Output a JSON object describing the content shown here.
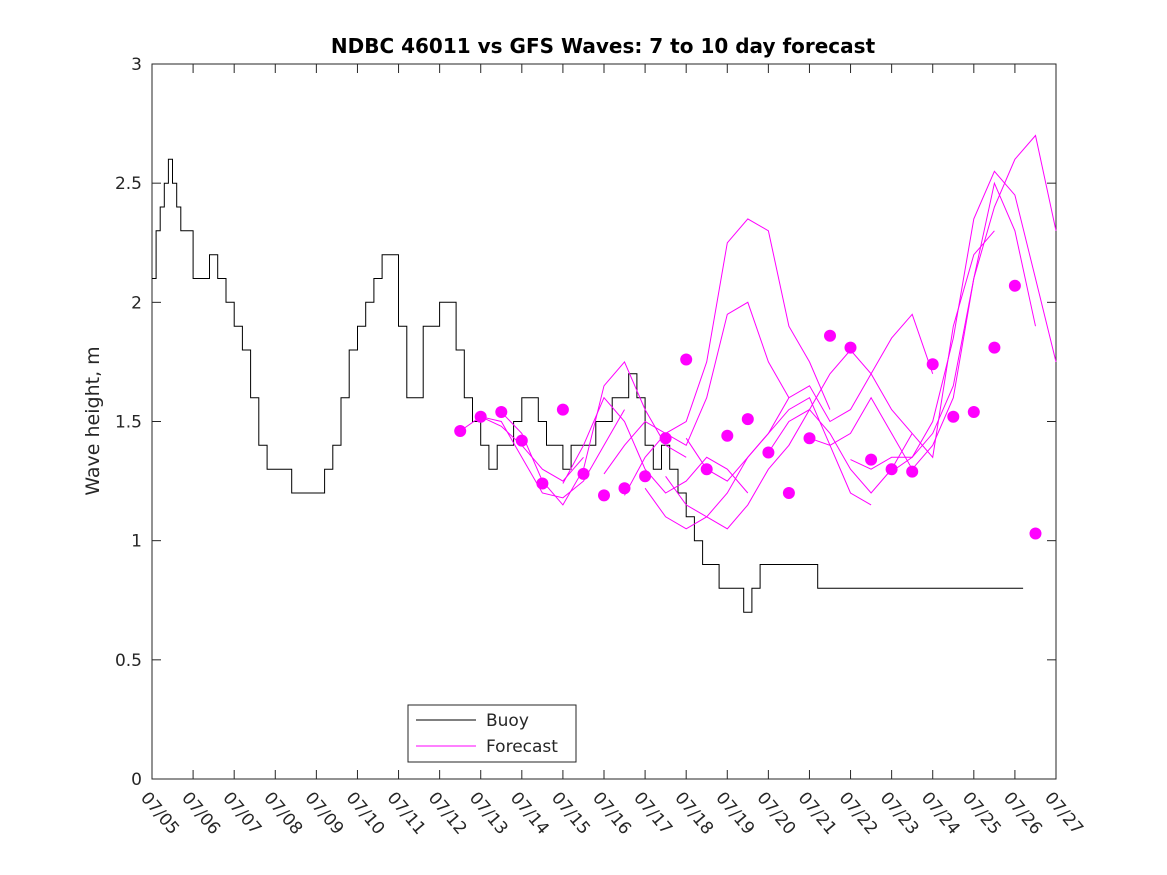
{
  "chart_data": {
    "type": "line",
    "title": "NDBC 46011 vs GFS Waves: 7 to 10 day forecast",
    "xlabel": "",
    "ylabel": "Wave height, m",
    "xlim": [
      0,
      22
    ],
    "ylim": [
      0,
      3
    ],
    "x_tick_labels": [
      "07/05",
      "07/06",
      "07/07",
      "07/08",
      "07/09",
      "07/10",
      "07/11",
      "07/12",
      "07/13",
      "07/14",
      "07/15",
      "07/16",
      "07/17",
      "07/18",
      "07/19",
      "07/20",
      "07/21",
      "07/22",
      "07/23",
      "07/24",
      "07/25",
      "07/26",
      "07/27"
    ],
    "y_ticks": [
      0,
      0.5,
      1,
      1.5,
      2,
      2.5,
      3
    ],
    "y_tick_labels": [
      "0",
      "0.5",
      "1",
      "1.5",
      "2",
      "2.5",
      "3"
    ],
    "grid": false,
    "legend": {
      "placement": "bottom-center",
      "entries": [
        "Buoy",
        "Forecast"
      ]
    },
    "colors": {
      "buoy": "#000000",
      "forecast": "#ff00ff",
      "axes": "#262626"
    },
    "series": [
      {
        "name": "Buoy",
        "x": [
          0,
          0.1,
          0.2,
          0.3,
          0.4,
          0.5,
          0.6,
          0.7,
          0.8,
          1.0,
          1.2,
          1.4,
          1.6,
          1.8,
          2.0,
          2.2,
          2.4,
          2.6,
          2.8,
          3.0,
          3.2,
          3.4,
          3.6,
          3.8,
          4.0,
          4.2,
          4.4,
          4.6,
          4.8,
          5.0,
          5.2,
          5.4,
          5.6,
          5.8,
          6.0,
          6.2,
          6.4,
          6.6,
          6.8,
          7.0,
          7.2,
          7.4,
          7.6,
          7.8,
          8.0,
          8.2,
          8.4,
          8.6,
          8.8,
          9.0,
          9.2,
          9.4,
          9.6,
          9.8,
          10.0,
          10.2,
          10.4,
          10.6,
          10.8,
          11.0,
          11.2,
          11.4,
          11.6,
          11.8,
          12.0,
          12.2,
          12.4,
          12.6,
          12.8,
          13.0,
          13.2,
          13.4,
          13.6,
          13.8,
          14.0,
          14.2,
          14.4,
          14.6,
          14.8,
          15.0,
          15.2,
          15.4,
          15.6,
          15.8,
          16.0,
          16.2,
          16.4,
          16.6,
          16.8,
          17.0,
          17.2,
          17.4,
          17.6,
          17.8,
          18.0,
          18.2,
          18.4,
          18.6,
          18.8,
          19.0,
          19.2,
          19.4,
          19.6,
          19.8,
          20.0,
          20.2,
          20.4,
          20.6,
          20.8,
          21.0,
          21.2
        ],
        "y": [
          2.1,
          2.3,
          2.4,
          2.5,
          2.6,
          2.5,
          2.4,
          2.3,
          2.3,
          2.1,
          2.1,
          2.2,
          2.1,
          2.0,
          1.9,
          1.8,
          1.6,
          1.4,
          1.3,
          1.3,
          1.3,
          1.2,
          1.2,
          1.2,
          1.2,
          1.3,
          1.4,
          1.6,
          1.8,
          1.9,
          2.0,
          2.1,
          2.2,
          2.2,
          1.9,
          1.6,
          1.6,
          1.9,
          1.9,
          2.0,
          2.0,
          1.8,
          1.6,
          1.5,
          1.4,
          1.3,
          1.4,
          1.4,
          1.5,
          1.6,
          1.6,
          1.5,
          1.4,
          1.4,
          1.3,
          1.4,
          1.4,
          1.4,
          1.5,
          1.5,
          1.6,
          1.6,
          1.7,
          1.6,
          1.4,
          1.3,
          1.4,
          1.3,
          1.2,
          1.1,
          1.0,
          0.9,
          0.9,
          0.8,
          0.8,
          0.8,
          0.7,
          0.8,
          0.9,
          0.9,
          0.9,
          0.9,
          0.9,
          0.9,
          0.9,
          0.8,
          0.8,
          0.8,
          0.8,
          0.8,
          0.8,
          0.8,
          0.8,
          0.8,
          0.8,
          0.8,
          0.8,
          0.8,
          0.8,
          0.8,
          0.8,
          0.8,
          0.8,
          0.8,
          0.8,
          0.8,
          0.8,
          0.8,
          0.8,
          0.8,
          0.8
        ]
      },
      {
        "name": "Forecast",
        "x": [
          7.5,
          8.0,
          8.5,
          9.0,
          9.5,
          10.0,
          10.5
        ],
        "y": [
          1.46,
          1.52,
          1.48,
          1.4,
          1.3,
          1.25,
          1.35
        ]
      },
      {
        "name": "",
        "x": [
          8.0,
          8.5,
          9.0,
          9.5,
          10.0,
          10.5,
          11.0,
          11.5
        ],
        "y": [
          1.52,
          1.5,
          1.35,
          1.2,
          1.18,
          1.25,
          1.4,
          1.55
        ]
      },
      {
        "name": "",
        "x": [
          8.5,
          9.0,
          9.5,
          10.0,
          10.5,
          11.0,
          11.5,
          12.0,
          12.5,
          13.0
        ],
        "y": [
          1.54,
          1.45,
          1.25,
          1.15,
          1.3,
          1.65,
          1.75,
          1.55,
          1.4,
          1.35
        ]
      },
      {
        "name": "",
        "x": [
          10.0,
          10.5,
          11.0,
          11.5,
          12.0,
          12.5,
          13.0,
          13.5,
          14.0,
          14.5
        ],
        "y": [
          1.24,
          1.4,
          1.6,
          1.5,
          1.3,
          1.2,
          1.25,
          1.35,
          1.3,
          1.2
        ]
      },
      {
        "name": "",
        "x": [
          11.0,
          11.5,
          12.0,
          12.5,
          13.0,
          13.5,
          14.0,
          14.5,
          15.0,
          15.5
        ],
        "y": [
          1.28,
          1.4,
          1.5,
          1.45,
          1.4,
          1.6,
          1.95,
          2.0,
          1.75,
          1.6
        ]
      },
      {
        "name": "",
        "x": [
          11.5,
          12.0,
          12.5,
          13.0,
          13.5,
          14.0,
          14.5,
          15.0,
          15.5,
          16.0,
          16.5
        ],
        "y": [
          1.19,
          1.35,
          1.45,
          1.5,
          1.75,
          2.25,
          2.35,
          2.3,
          1.9,
          1.75,
          1.55
        ]
      },
      {
        "name": "",
        "x": [
          12.0,
          12.5,
          13.0,
          13.5,
          14.0,
          14.5,
          15.0,
          15.5,
          16.0,
          16.5,
          17.0,
          17.5
        ],
        "y": [
          1.22,
          1.1,
          1.05,
          1.1,
          1.2,
          1.35,
          1.45,
          1.55,
          1.6,
          1.4,
          1.2,
          1.15
        ]
      },
      {
        "name": "",
        "x": [
          12.5,
          13.0,
          13.5,
          14.0,
          14.5,
          15.0,
          15.5,
          16.0,
          16.5,
          17.0,
          17.5,
          18.0,
          18.5
        ],
        "y": [
          1.27,
          1.15,
          1.1,
          1.05,
          1.15,
          1.3,
          1.4,
          1.55,
          1.45,
          1.3,
          1.2,
          1.3,
          1.45
        ]
      },
      {
        "name": "",
        "x": [
          13.0,
          13.5,
          14.0,
          14.5,
          15.0,
          15.5,
          16.0,
          16.5,
          17.0,
          17.5,
          18.0,
          18.5,
          19.0
        ],
        "y": [
          1.43,
          1.3,
          1.25,
          1.35,
          1.45,
          1.6,
          1.65,
          1.5,
          1.55,
          1.7,
          1.85,
          1.95,
          1.7
        ]
      },
      {
        "name": "",
        "x": [
          15.0,
          15.5,
          16.0,
          16.5,
          17.0,
          17.5,
          18.0,
          18.5,
          19.0,
          19.5,
          20.0,
          20.5
        ],
        "y": [
          1.37,
          1.5,
          1.55,
          1.7,
          1.8,
          1.7,
          1.55,
          1.45,
          1.35,
          1.9,
          2.2,
          2.3
        ]
      },
      {
        "name": "",
        "x": [
          16.0,
          16.5,
          17.0,
          17.5,
          18.0,
          18.5,
          19.0,
          19.5,
          20.0,
          20.5,
          21.0,
          21.5
        ],
        "y": [
          1.43,
          1.4,
          1.45,
          1.6,
          1.45,
          1.3,
          1.4,
          1.6,
          2.1,
          2.5,
          2.3,
          1.9
        ]
      },
      {
        "name": "",
        "x": [
          17.0,
          17.5,
          18.0,
          18.5,
          19.0,
          19.5,
          20.0,
          20.5,
          21.0,
          21.5,
          22.0
        ],
        "y": [
          1.34,
          1.3,
          1.35,
          1.35,
          1.5,
          1.85,
          2.35,
          2.55,
          2.45,
          2.1,
          1.75
        ]
      },
      {
        "name": "",
        "x": [
          18.0,
          18.5,
          19.0,
          19.5,
          20.0,
          20.5,
          21.0,
          21.5,
          22.0
        ],
        "y": [
          1.29,
          1.35,
          1.45,
          1.65,
          2.1,
          2.4,
          2.6,
          2.7,
          2.3
        ]
      }
    ],
    "forecast_points": {
      "x": [
        7.5,
        8.0,
        8.5,
        9.0,
        9.5,
        10.0,
        10.5,
        11.0,
        11.5,
        12.0,
        12.5,
        13.0,
        13.5,
        14.0,
        14.5,
        15.0,
        15.5,
        16.0,
        16.5,
        17.0,
        17.5,
        18.0,
        18.5,
        19.0,
        19.5,
        20.0,
        20.5,
        21.0,
        21.5
      ],
      "y": [
        1.46,
        1.52,
        1.54,
        1.42,
        1.24,
        1.55,
        1.28,
        1.19,
        1.22,
        1.27,
        1.43,
        1.76,
        1.3,
        1.44,
        1.51,
        1.37,
        1.2,
        1.43,
        1.86,
        1.81,
        1.34,
        1.3,
        1.29,
        1.74,
        1.52,
        1.54,
        1.81,
        2.07,
        1.03
      ]
    }
  }
}
